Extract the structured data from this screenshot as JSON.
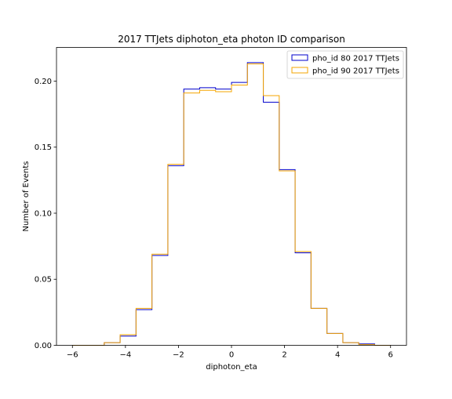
{
  "chart_data": {
    "type": "histogram-step",
    "title": "2017 TTJets diphoton_eta photon ID comparison",
    "xlabel": "diphoton_eta",
    "ylabel": "Number of Events",
    "xlim": [
      -6.6,
      6.6
    ],
    "ylim": [
      0,
      0.2255
    ],
    "xticks": [
      -6,
      -4,
      -2,
      0,
      2,
      4,
      6
    ],
    "xtick_labels": [
      "−6",
      "−4",
      "−2",
      "0",
      "2",
      "4",
      "6"
    ],
    "yticks": [
      0.0,
      0.05,
      0.1,
      0.15,
      0.2
    ],
    "ytick_labels": [
      "0.00",
      "0.05",
      "0.10",
      "0.15",
      "0.20"
    ],
    "grid": false,
    "legend_position": "top-right",
    "bin_edges": [
      -6.0,
      -5.4,
      -4.8,
      -4.2,
      -3.6,
      -3.0,
      -2.4,
      -1.8,
      -1.2,
      -0.6,
      0.0,
      0.6,
      1.2,
      1.8,
      2.4,
      3.0,
      3.6,
      4.2,
      4.8,
      5.4,
      6.0
    ],
    "series": [
      {
        "name": "pho_id 80 2017 TTJets",
        "color": "#0000cc",
        "values": [
          0.0,
          0.0,
          0.002,
          0.007,
          0.027,
          0.068,
          0.136,
          0.194,
          0.195,
          0.194,
          0.199,
          0.214,
          0.184,
          0.133,
          0.07,
          0.028,
          0.009,
          0.002,
          0.001,
          0.0
        ]
      },
      {
        "name": "pho_id 90 2017 TTJets",
        "color": "#f5a500",
        "values": [
          0.0,
          0.0,
          0.002,
          0.008,
          0.028,
          0.069,
          0.137,
          0.191,
          0.193,
          0.192,
          0.197,
          0.213,
          0.189,
          0.132,
          0.071,
          0.028,
          0.009,
          0.002,
          0.0005,
          0.0
        ]
      }
    ]
  }
}
